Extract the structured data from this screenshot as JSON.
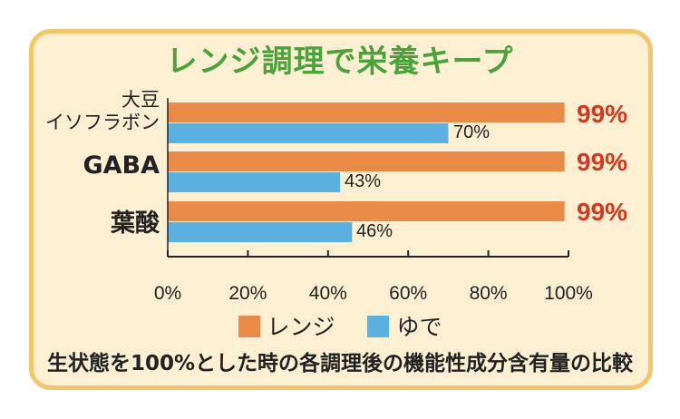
{
  "title": "レンジ調理で栄養キープ",
  "footnote": "生状態を100%とした時の各調理後の機能性成分含有量の比較",
  "colors": {
    "range": "#e98a47",
    "boil": "#5ab1df",
    "title": "#4aa33a",
    "highlight": "#d23a1f",
    "panel": "#fcefd2",
    "border": "#f3c66a"
  },
  "legend": [
    {
      "label": "レンジ",
      "color": "#e98a47"
    },
    {
      "label": "ゆで",
      "color": "#5ab1df"
    }
  ],
  "chart_data": {
    "type": "bar",
    "orientation": "horizontal",
    "title": "レンジ調理で栄養キープ",
    "categories": [
      "大豆\nイソフラボン",
      "GABA",
      "葉酸"
    ],
    "category_lines": [
      [
        "大豆",
        "イソフラボン"
      ],
      [
        "GABA"
      ],
      [
        "葉酸"
      ]
    ],
    "series": [
      {
        "name": "レンジ",
        "values": [
          99,
          99,
          99
        ],
        "labels": [
          "99%",
          "99%",
          "99%"
        ]
      },
      {
        "name": "ゆで",
        "values": [
          70,
          43,
          46
        ],
        "labels": [
          "70%",
          "43%",
          "46%"
        ]
      }
    ],
    "xlim": [
      0,
      100
    ],
    "xticks": [
      "0%",
      "20%",
      "40%",
      "60%",
      "80%",
      "100%"
    ],
    "grid": false,
    "legend_position": "bottom"
  }
}
